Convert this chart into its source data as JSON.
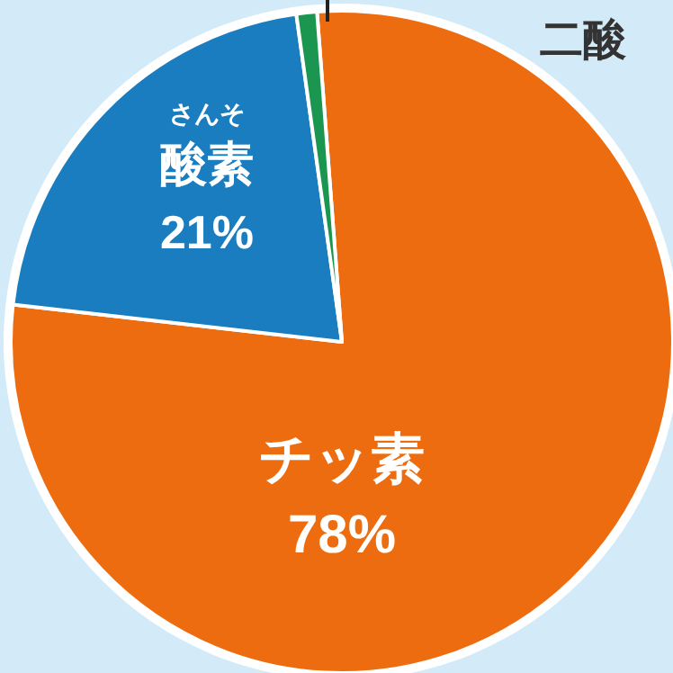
{
  "chart_data": {
    "type": "pie",
    "categories": [
      "チッ素",
      "酸素",
      null
    ],
    "values": [
      78,
      21,
      1
    ],
    "colors": [
      "#ec6c0f",
      "#1a7dbf",
      "#1a9650"
    ],
    "value_labels": [
      "78%",
      "21%",
      null
    ],
    "annotations": [
      "さんそ",
      "二酸"
    ]
  }
}
